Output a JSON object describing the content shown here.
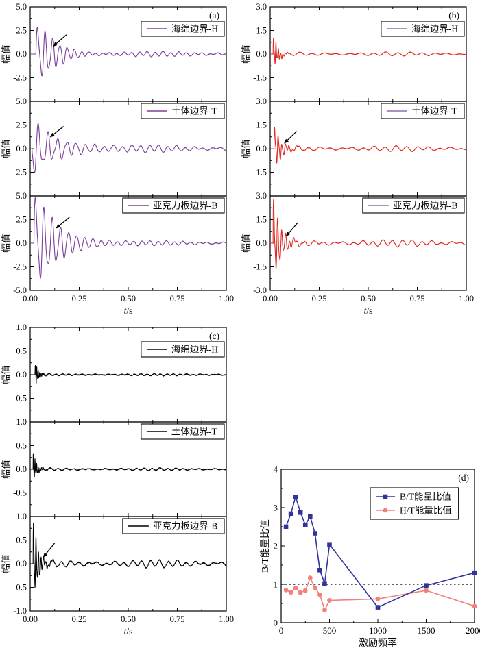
{
  "figure_title": "",
  "axis_color": "#000000",
  "chart_data": [
    {
      "id": "a",
      "type": "line",
      "label": "(a)",
      "line_color": "#7B3F98",
      "legend_line_color": "#7B3F98",
      "xlabel": "t/s",
      "ylabel": "幅值",
      "xlim": [
        0,
        1
      ],
      "ylim": [
        -5,
        5
      ],
      "xticks": [
        0,
        0.25,
        0.5,
        0.75,
        1
      ],
      "xtick_labels": [
        "0.00",
        "0.25",
        "0.50",
        "0.75",
        "1.00"
      ],
      "yticks": [
        5,
        2.5,
        0,
        -2.5,
        -5
      ],
      "ytick_labels": [
        "5.0",
        "2.5",
        "0.0",
        "-2.5",
        "-5.0"
      ],
      "grid": false,
      "legend_position": "top-right",
      "subpanels": [
        {
          "legend": "海绵边界-H",
          "arrow": {
            "x1": 0.185,
            "y1": 2.05,
            "x2": 0.115,
            "y2": 0.78
          },
          "wave": {
            "amp": 2.9,
            "decay": 9,
            "freq": 27,
            "sub_amp": 0.9,
            "sub_freq": 47,
            "sub_decay": 14,
            "tail": 0.15,
            "tail_freq": 25,
            "t0": 0.03,
            "phase": 0,
            "noise": 0.02,
            "seed": 11
          }
        },
        {
          "legend": "土体边界-T",
          "arrow": {
            "x1": 0.17,
            "y1": 2.35,
            "x2": 0.1,
            "y2": 1.2
          },
          "wave": {
            "amp": 2.6,
            "decay": 6.5,
            "freq": 21,
            "sub_amp": 1.0,
            "sub_freq": 38,
            "sub_decay": 10,
            "tail": 0.2,
            "tail_freq": 22,
            "t0": 0.01,
            "phase": 3.6,
            "noise": 0.02,
            "seed": 22
          }
        },
        {
          "legend": "亚克力板边界-B",
          "arrow": {
            "x1": 0.2,
            "y1": 2.75,
            "x2": 0.13,
            "y2": 1.55
          },
          "wave": {
            "amp": 4.7,
            "decay": 8.5,
            "freq": 24,
            "sub_amp": 1.4,
            "sub_freq": 44,
            "sub_decay": 13,
            "tail": 0.13,
            "tail_freq": 24,
            "t0": 0.02,
            "phase": 0.2,
            "noise": 0.02,
            "seed": 33
          }
        }
      ]
    },
    {
      "id": "b",
      "type": "line",
      "label": "(b)",
      "line_color": "#E02822",
      "legend_line_color": "#8F6BAE",
      "xlabel": "t/s",
      "ylabel": "幅值",
      "xlim": [
        0,
        1
      ],
      "ylim": [
        -3,
        3
      ],
      "xticks": [
        0,
        0.25,
        0.5,
        0.75,
        1
      ],
      "xtick_labels": [
        "0.00",
        "0.25",
        "0.50",
        "0.75",
        "1.00"
      ],
      "yticks": [
        3,
        1.5,
        0,
        -1.5,
        -3
      ],
      "ytick_labels": [
        "3.0",
        "1.5",
        "0.0",
        "-1.5",
        "-3.0"
      ],
      "grid": false,
      "legend_position": "top-right",
      "subpanels": [
        {
          "legend": "海绵边界-H",
          "arrow": null,
          "wave": {
            "amp": 1.0,
            "decay": 45,
            "freq": 85,
            "sub_amp": 0.45,
            "sub_freq": 150,
            "sub_decay": 60,
            "tail": 0.07,
            "tail_freq": 16,
            "t0": 0.015,
            "phase": 0,
            "noise": 0.012,
            "seed": 44
          }
        },
        {
          "legend": "土体边界-T",
          "arrow": {
            "x1": 0.135,
            "y1": 1.1,
            "x2": 0.07,
            "y2": 0.32
          },
          "wave": {
            "amp": 1.25,
            "decay": 28,
            "freq": 55,
            "sub_amp": 0.5,
            "sub_freq": 110,
            "sub_decay": 45,
            "tail": 0.1,
            "tail_freq": 18,
            "t0": 0.02,
            "phase": 0.3,
            "noise": 0.012,
            "seed": 55
          }
        },
        {
          "legend": "亚克力板边界-B",
          "arrow": {
            "x1": 0.14,
            "y1": 1.3,
            "x2": 0.08,
            "y2": 0.42
          },
          "wave": {
            "amp": 2.45,
            "decay": 26,
            "freq": 50,
            "sub_amp": 0.9,
            "sub_freq": 95,
            "sub_decay": 40,
            "tail": 0.12,
            "tail_freq": 20,
            "t0": 0.015,
            "phase": 0.4,
            "noise": 0.012,
            "seed": 66
          }
        }
      ]
    },
    {
      "id": "c",
      "type": "line",
      "label": "(c)",
      "line_color": "#000000",
      "legend_line_color": "#000000",
      "xlabel": "t/s",
      "ylabel": "幅值",
      "xlim": [
        0,
        1
      ],
      "ylim": [
        -1,
        1
      ],
      "xticks": [
        0,
        0.25,
        0.5,
        0.75,
        1
      ],
      "xtick_labels": [
        "0.00",
        "0.25",
        "0.50",
        "0.75",
        "1.00"
      ],
      "yticks": [
        1,
        0.5,
        0,
        -0.5,
        -1
      ],
      "ytick_labels": [
        "1.0",
        "0.5",
        "0.0",
        "-0.5",
        "-1.0"
      ],
      "grid": false,
      "legend_position": "top-right",
      "subpanels": [
        {
          "legend": "海绵边界-H",
          "arrow": null,
          "wave": {
            "amp": 0.22,
            "decay": 60,
            "freq": 140,
            "sub_amp": 0.1,
            "sub_freq": 260,
            "sub_decay": 90,
            "tail": 0.012,
            "tail_freq": 30,
            "t0": 0.025,
            "phase": 0,
            "noise": 0.008,
            "seed": 77
          }
        },
        {
          "legend": "土体边界-T",
          "arrow": null,
          "wave": {
            "amp": 0.27,
            "decay": 55,
            "freq": 120,
            "sub_amp": 0.12,
            "sub_freq": 230,
            "sub_decay": 85,
            "tail": 0.015,
            "tail_freq": 25,
            "t0": 0.015,
            "phase": 0.5,
            "noise": 0.008,
            "seed": 88
          }
        },
        {
          "legend": "亚克力板边界-B",
          "arrow": {
            "x1": 0.125,
            "y1": 0.44,
            "x2": 0.065,
            "y2": 0.13
          },
          "wave": {
            "amp": 0.78,
            "decay": 40,
            "freq": 80,
            "sub_amp": 0.3,
            "sub_freq": 150,
            "sub_decay": 60,
            "tail": 0.045,
            "tail_freq": 22,
            "t0": 0.015,
            "phase": 0.3,
            "noise": 0.01,
            "seed": 99
          }
        }
      ]
    },
    {
      "id": "d",
      "type": "scatter",
      "label": "(d)",
      "xlabel": "激励频率",
      "ylabel": "B/T能量比值",
      "xlim": [
        0,
        2000
      ],
      "ylim": [
        0,
        4
      ],
      "xticks": [
        0,
        500,
        1000,
        1500,
        2000
      ],
      "xtick_labels": [
        "0",
        "500",
        "1000",
        "1500",
        "2000"
      ],
      "yticks": [
        0,
        1,
        2,
        3,
        4
      ],
      "ytick_labels": [
        "0",
        "1",
        "2",
        "3",
        "4"
      ],
      "grid": false,
      "legend_position": "top-center",
      "reference_line_y": 1,
      "x": [
        50,
        100,
        150,
        200,
        250,
        300,
        350,
        400,
        450,
        500,
        1000,
        1500,
        2000
      ],
      "series": [
        {
          "name": "B/T能量比值",
          "color": "#32329B",
          "marker": "square",
          "values": [
            2.5,
            2.84,
            3.28,
            2.87,
            2.55,
            2.77,
            2.33,
            1.37,
            1.02,
            2.04,
            0.4,
            0.97,
            1.3
          ]
        },
        {
          "name": "H/T能量比值",
          "color": "#F2807D",
          "marker": "circle",
          "values": [
            0.85,
            0.79,
            0.9,
            0.78,
            0.84,
            1.17,
            0.91,
            0.73,
            0.33,
            0.58,
            0.62,
            0.84,
            0.43
          ]
        }
      ]
    }
  ]
}
